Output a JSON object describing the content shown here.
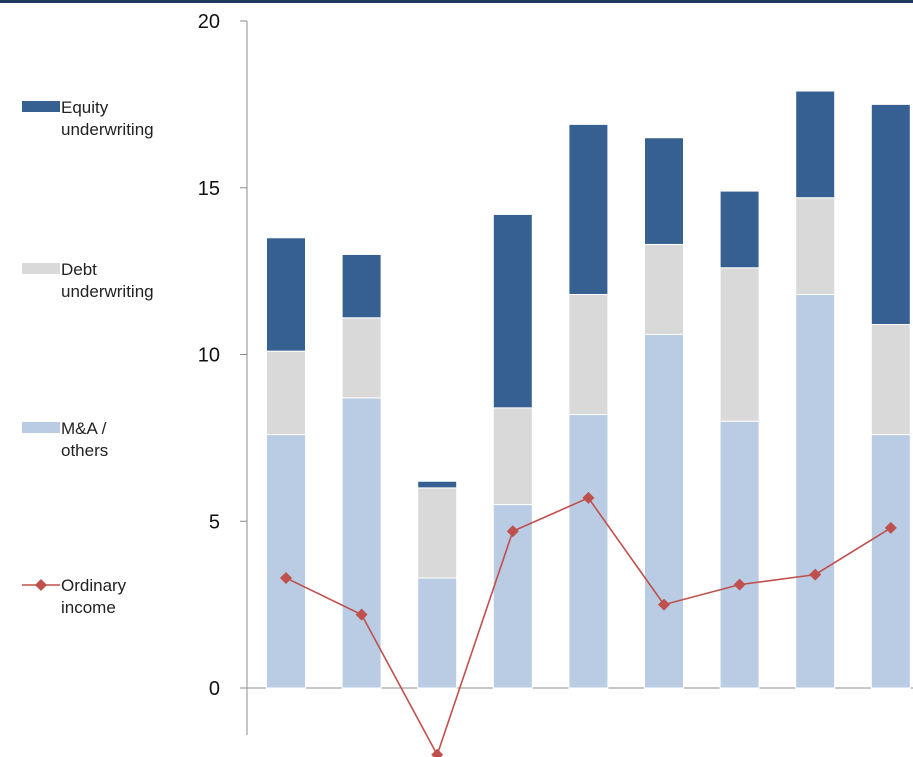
{
  "chart_data": {
    "type": "bar",
    "stacked": true,
    "title": "",
    "xlabel": "",
    "ylabel": "",
    "ylim": [
      -2,
      20
    ],
    "yticks": [
      0,
      5,
      10,
      15,
      20
    ],
    "categories": [
      "",
      "",
      "",
      "",
      "",
      "",
      "",
      "",
      ""
    ],
    "series": [
      {
        "name": "M&A / others",
        "kind": "bar",
        "color": "#b9cce4",
        "values": [
          7.6,
          8.7,
          3.3,
          5.5,
          8.2,
          10.6,
          8.0,
          11.8,
          7.6
        ]
      },
      {
        "name": "Debt underwriting",
        "kind": "bar",
        "color": "#d9d9d9",
        "values": [
          2.5,
          2.4,
          2.7,
          2.9,
          3.6,
          2.7,
          4.6,
          2.9,
          3.3
        ]
      },
      {
        "name": "Equity underwriting",
        "kind": "bar",
        "color": "#376092",
        "values": [
          3.4,
          1.9,
          0.2,
          5.8,
          5.1,
          3.2,
          2.3,
          3.2,
          6.6
        ]
      },
      {
        "name": "Ordinary income",
        "kind": "line",
        "color": "#c0504d",
        "values": [
          3.3,
          2.2,
          -2.0,
          4.7,
          5.7,
          2.5,
          3.1,
          3.4,
          4.8
        ]
      }
    ],
    "legend": {
      "placement": "left",
      "entries": [
        {
          "lines": [
            "Equity",
            "underwriting"
          ],
          "series": 2
        },
        {
          "lines": [
            "Debt",
            "underwriting"
          ],
          "series": 1
        },
        {
          "lines": [
            "M&A /",
            "others"
          ],
          "series": 0
        },
        {
          "lines": [
            "Ordinary",
            "income"
          ],
          "series": 3
        }
      ]
    },
    "grid": false
  }
}
